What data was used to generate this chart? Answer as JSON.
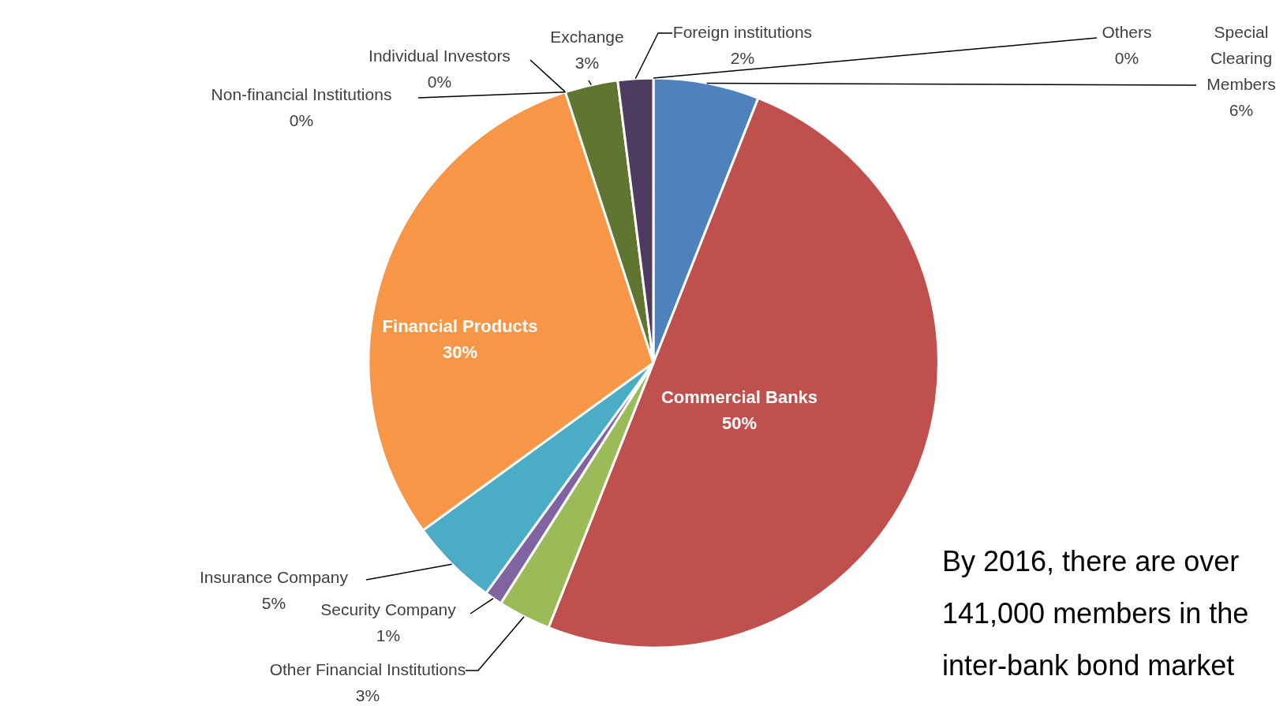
{
  "chart_data": {
    "type": "pie",
    "categories": [
      "Special Clearing Members",
      "Commercial Banks",
      "Other Financial Institutions",
      "Security Company",
      "Insurance Company",
      "Financial Products",
      "Non-financial Institutions",
      "Individual Investors",
      "Exchange",
      "Foreign institutions",
      "Others"
    ],
    "values": [
      6,
      50,
      3,
      1,
      5,
      30,
      0,
      0,
      3,
      2,
      0
    ],
    "colors": [
      "#4f81bd",
      "#c0504d",
      "#9bbb59",
      "#8064a2",
      "#4bacc6",
      "#f79646",
      null,
      null,
      "#5f7530",
      "#4d3b62",
      null
    ],
    "value_labels": [
      "6%",
      "50%",
      "3%",
      "1%",
      "5%",
      "30%",
      "0%",
      "0%",
      "3%",
      "2%",
      "0%"
    ],
    "annotations": [
      "By 2016, there are over 141,000 members in the inter-bank bond market"
    ]
  }
}
